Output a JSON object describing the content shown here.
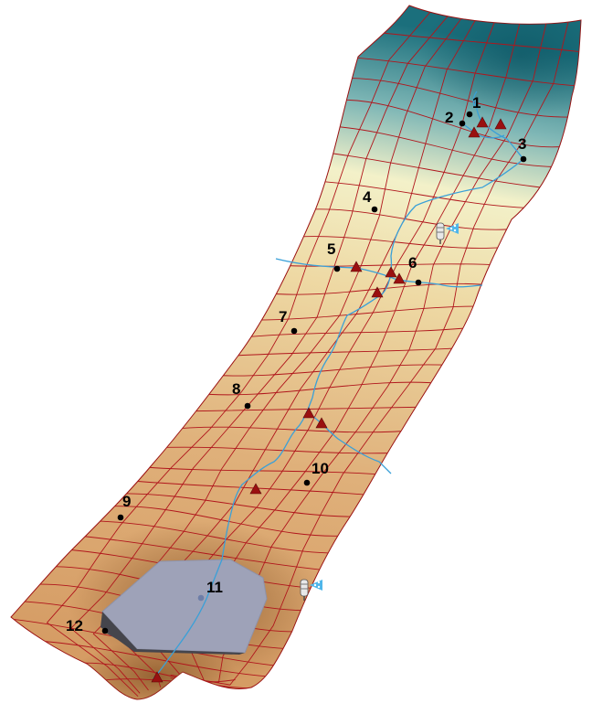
{
  "colors": {
    "terrain_high": "#1b6f7c",
    "terrain_mid": "#f3f1c9",
    "terrain_low": "#d7a064",
    "grid_line": "#b0161c",
    "stream": "#3aa0d8",
    "marker_triangle": "#9a1010",
    "site_point": "#000000",
    "reservoir_top": "#9ea2b8",
    "reservoir_side": "#4b4b52"
  },
  "icons": {
    "station_a": "weather-station-icon",
    "station_b": "weather-station-icon",
    "marker": "red-triangle-icon"
  },
  "sites": [
    {
      "label": "1"
    },
    {
      "label": "2"
    },
    {
      "label": "3"
    },
    {
      "label": "4"
    },
    {
      "label": "5"
    },
    {
      "label": "6"
    },
    {
      "label": "7"
    },
    {
      "label": "8"
    },
    {
      "label": "9"
    },
    {
      "label": "10"
    },
    {
      "label": "11"
    },
    {
      "label": "12"
    }
  ]
}
